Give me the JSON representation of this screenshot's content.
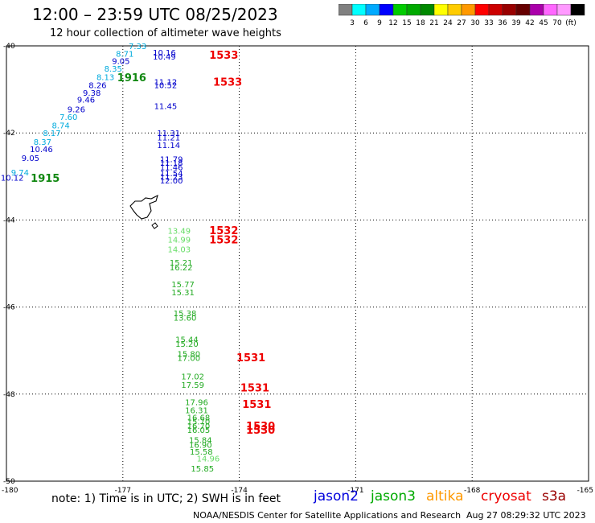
{
  "header": {
    "title": "12:00 – 23:59 UTC 08/25/2023",
    "subtitle": "12 hour collection of altimeter wave heights"
  },
  "legend": {
    "colors": [
      "#808080",
      "#00ffff",
      "#00aaff",
      "#0000ff",
      "#00cc00",
      "#00aa00",
      "#008800",
      "#ffff00",
      "#ffcc00",
      "#ff9900",
      "#ff0000",
      "#cc0000",
      "#990000",
      "#660000",
      "#aa00aa",
      "#ff66ff",
      "#ff99ff",
      "#000000"
    ],
    "labels": [
      "3",
      "6",
      "9",
      "12",
      "15",
      "18",
      "21",
      "24",
      "27",
      "30",
      "33",
      "36",
      "39",
      "42",
      "45",
      "70",
      "(ft)"
    ]
  },
  "axes": {
    "lat_labels": [
      "-40",
      "-42",
      "-44",
      "-46",
      "-48",
      "-50"
    ],
    "lon_labels": [
      "-180",
      "-177",
      "-174",
      "-171",
      "-168",
      "-165"
    ]
  },
  "tracks": [
    {
      "id": "jason2-a",
      "color": "#00aadd",
      "points": [
        {
          "v": "7.33",
          "lat": -40.0,
          "lon": -176.62
        },
        {
          "v": "8.71",
          "lat": -40.18,
          "lon": -176.95
        },
        {
          "v": "8.35",
          "lat": -40.52,
          "lon": -177.25
        },
        {
          "v": "8.13",
          "lat": -40.71,
          "lon": -177.45
        },
        {
          "v": "7.60",
          "lat": -41.63,
          "lon": -178.4
        },
        {
          "v": "8.74",
          "lat": -41.82,
          "lon": -178.6
        },
        {
          "v": "8.17",
          "lat": -42.0,
          "lon": -178.83
        },
        {
          "v": "8.37",
          "lat": -42.2,
          "lon": -179.07
        },
        {
          "v": "9.74",
          "lat": -42.9,
          "lon": -179.65
        }
      ]
    },
    {
      "id": "jason2-b",
      "color": "#0000cc",
      "points": [
        {
          "v": "9.05",
          "lat": -40.34,
          "lon": -177.05
        },
        {
          "v": "8.26",
          "lat": -40.9,
          "lon": -177.65
        },
        {
          "v": "9.38",
          "lat": -41.07,
          "lon": -177.8
        },
        {
          "v": "9.46",
          "lat": -41.23,
          "lon": -177.95
        },
        {
          "v": "9.26",
          "lat": -41.45,
          "lon": -178.2
        },
        {
          "v": "10.46",
          "lat": -42.37,
          "lon": -179.1
        },
        {
          "v": "9.05",
          "lat": -42.57,
          "lon": -179.38
        },
        {
          "v": "10.12",
          "lat": -43.02,
          "lon": -179.85
        },
        {
          "v": "10.16",
          "lat": -40.15,
          "lon": -175.93
        },
        {
          "v": "10.49",
          "lat": -40.24,
          "lon": -175.93
        },
        {
          "v": "11.12",
          "lat": -40.82,
          "lon": -175.9
        },
        {
          "v": "10.52",
          "lat": -40.9,
          "lon": -175.9
        },
        {
          "v": "11.45",
          "lat": -41.38,
          "lon": -175.9
        },
        {
          "v": "11.31",
          "lat": -42.0,
          "lon": -175.82
        },
        {
          "v": "11.21",
          "lat": -42.1,
          "lon": -175.82
        },
        {
          "v": "11.14",
          "lat": -42.27,
          "lon": -175.82
        },
        {
          "v": "11.79",
          "lat": -42.6,
          "lon": -175.75
        },
        {
          "v": "11.18",
          "lat": -42.68,
          "lon": -175.75
        },
        {
          "v": "11.46",
          "lat": -42.78,
          "lon": -175.75
        },
        {
          "v": "11.54",
          "lat": -42.92,
          "lon": -175.75
        },
        {
          "v": "11.23",
          "lat": -43.0,
          "lon": -175.75
        },
        {
          "v": "12.00",
          "lat": -43.09,
          "lon": -175.75
        }
      ]
    },
    {
      "id": "jason3-a",
      "color": "#66dd66",
      "points": [
        {
          "v": "13.49",
          "lat": -44.24,
          "lon": -175.55
        },
        {
          "v": "14.99",
          "lat": -44.45,
          "lon": -175.55
        },
        {
          "v": "14.03",
          "lat": -44.67,
          "lon": -175.55
        },
        {
          "v": "14.96",
          "lat": -49.47,
          "lon": -174.8
        }
      ]
    },
    {
      "id": "jason3-b",
      "color": "#22aa22",
      "points": [
        {
          "v": "15.21",
          "lat": -44.97,
          "lon": -175.5
        },
        {
          "v": "16.22",
          "lat": -45.08,
          "lon": -175.5
        },
        {
          "v": "15.77",
          "lat": -45.47,
          "lon": -175.45
        },
        {
          "v": "15.31",
          "lat": -45.66,
          "lon": -175.45
        },
        {
          "v": "15.38",
          "lat": -46.14,
          "lon": -175.4
        },
        {
          "v": "13.60",
          "lat": -46.24,
          "lon": -175.4
        },
        {
          "v": "15.44",
          "lat": -46.74,
          "lon": -175.35
        },
        {
          "v": "15.20",
          "lat": -46.84,
          "lon": -175.35
        },
        {
          "v": "15.80",
          "lat": -47.07,
          "lon": -175.3
        },
        {
          "v": "17.00",
          "lat": -47.16,
          "lon": -175.3
        },
        {
          "v": "17.02",
          "lat": -47.59,
          "lon": -175.2
        },
        {
          "v": "17.59",
          "lat": -47.78,
          "lon": -175.2
        },
        {
          "v": "17.96",
          "lat": -48.18,
          "lon": -175.1
        },
        {
          "v": "16.31",
          "lat": -48.36,
          "lon": -175.1
        },
        {
          "v": "16.68",
          "lat": -48.53,
          "lon": -175.05
        },
        {
          "v": "15.70",
          "lat": -48.62,
          "lon": -175.05
        },
        {
          "v": "16.70",
          "lat": -48.72,
          "lon": -175.05
        },
        {
          "v": "16.05",
          "lat": -48.82,
          "lon": -175.05
        },
        {
          "v": "15.84",
          "lat": -49.05,
          "lon": -175.0
        },
        {
          "v": "16.90",
          "lat": -49.16,
          "lon": -175.0
        },
        {
          "v": "15.58",
          "lat": -49.32,
          "lon": -174.98
        },
        {
          "v": "15.85",
          "lat": -49.7,
          "lon": -174.95
        }
      ]
    }
  ],
  "time_labels": [
    {
      "text": "1533",
      "color": "#ee0000",
      "lat": -40.2,
      "lon": -174.4
    },
    {
      "text": "1533",
      "color": "#ee0000",
      "lat": -40.82,
      "lon": -174.3
    },
    {
      "text": "1916",
      "color": "#118811",
      "lat": -40.72,
      "lon": -176.77
    },
    {
      "text": "1915",
      "color": "#118811",
      "lat": -43.03,
      "lon": -179.0
    },
    {
      "text": "1532",
      "color": "#ee0000",
      "lat": -44.23,
      "lon": -174.4
    },
    {
      "text": "1532",
      "color": "#ee0000",
      "lat": -44.45,
      "lon": -174.4
    },
    {
      "text": "1531",
      "color": "#ee0000",
      "lat": -47.15,
      "lon": -173.7
    },
    {
      "text": "1531",
      "color": "#ee0000",
      "lat": -47.85,
      "lon": -173.6
    },
    {
      "text": "1531",
      "color": "#ee0000",
      "lat": -48.23,
      "lon": -173.55
    },
    {
      "text": "1530",
      "color": "#ee0000",
      "lat": -48.72,
      "lon": -173.45
    },
    {
      "text": "1530",
      "color": "#ee0000",
      "lat": -48.82,
      "lon": -173.45
    }
  ],
  "footer": {
    "note": "note:  1) Time is in UTC;  2) SWH is in feet",
    "satellites": [
      {
        "name": "jason2",
        "color": "#0000dd"
      },
      {
        "name": "jason3",
        "color": "#00aa00"
      },
      {
        "name": "altika",
        "color": "#ff9900"
      },
      {
        "name": "cryosat",
        "color": "#ee0000"
      },
      {
        "name": "s3a",
        "color": "#990000"
      }
    ],
    "credit": "NOAA/NESDIS Center for Satellite Applications and Research",
    "timestamp": "Aug 27 08:29:32 UTC 2023"
  }
}
